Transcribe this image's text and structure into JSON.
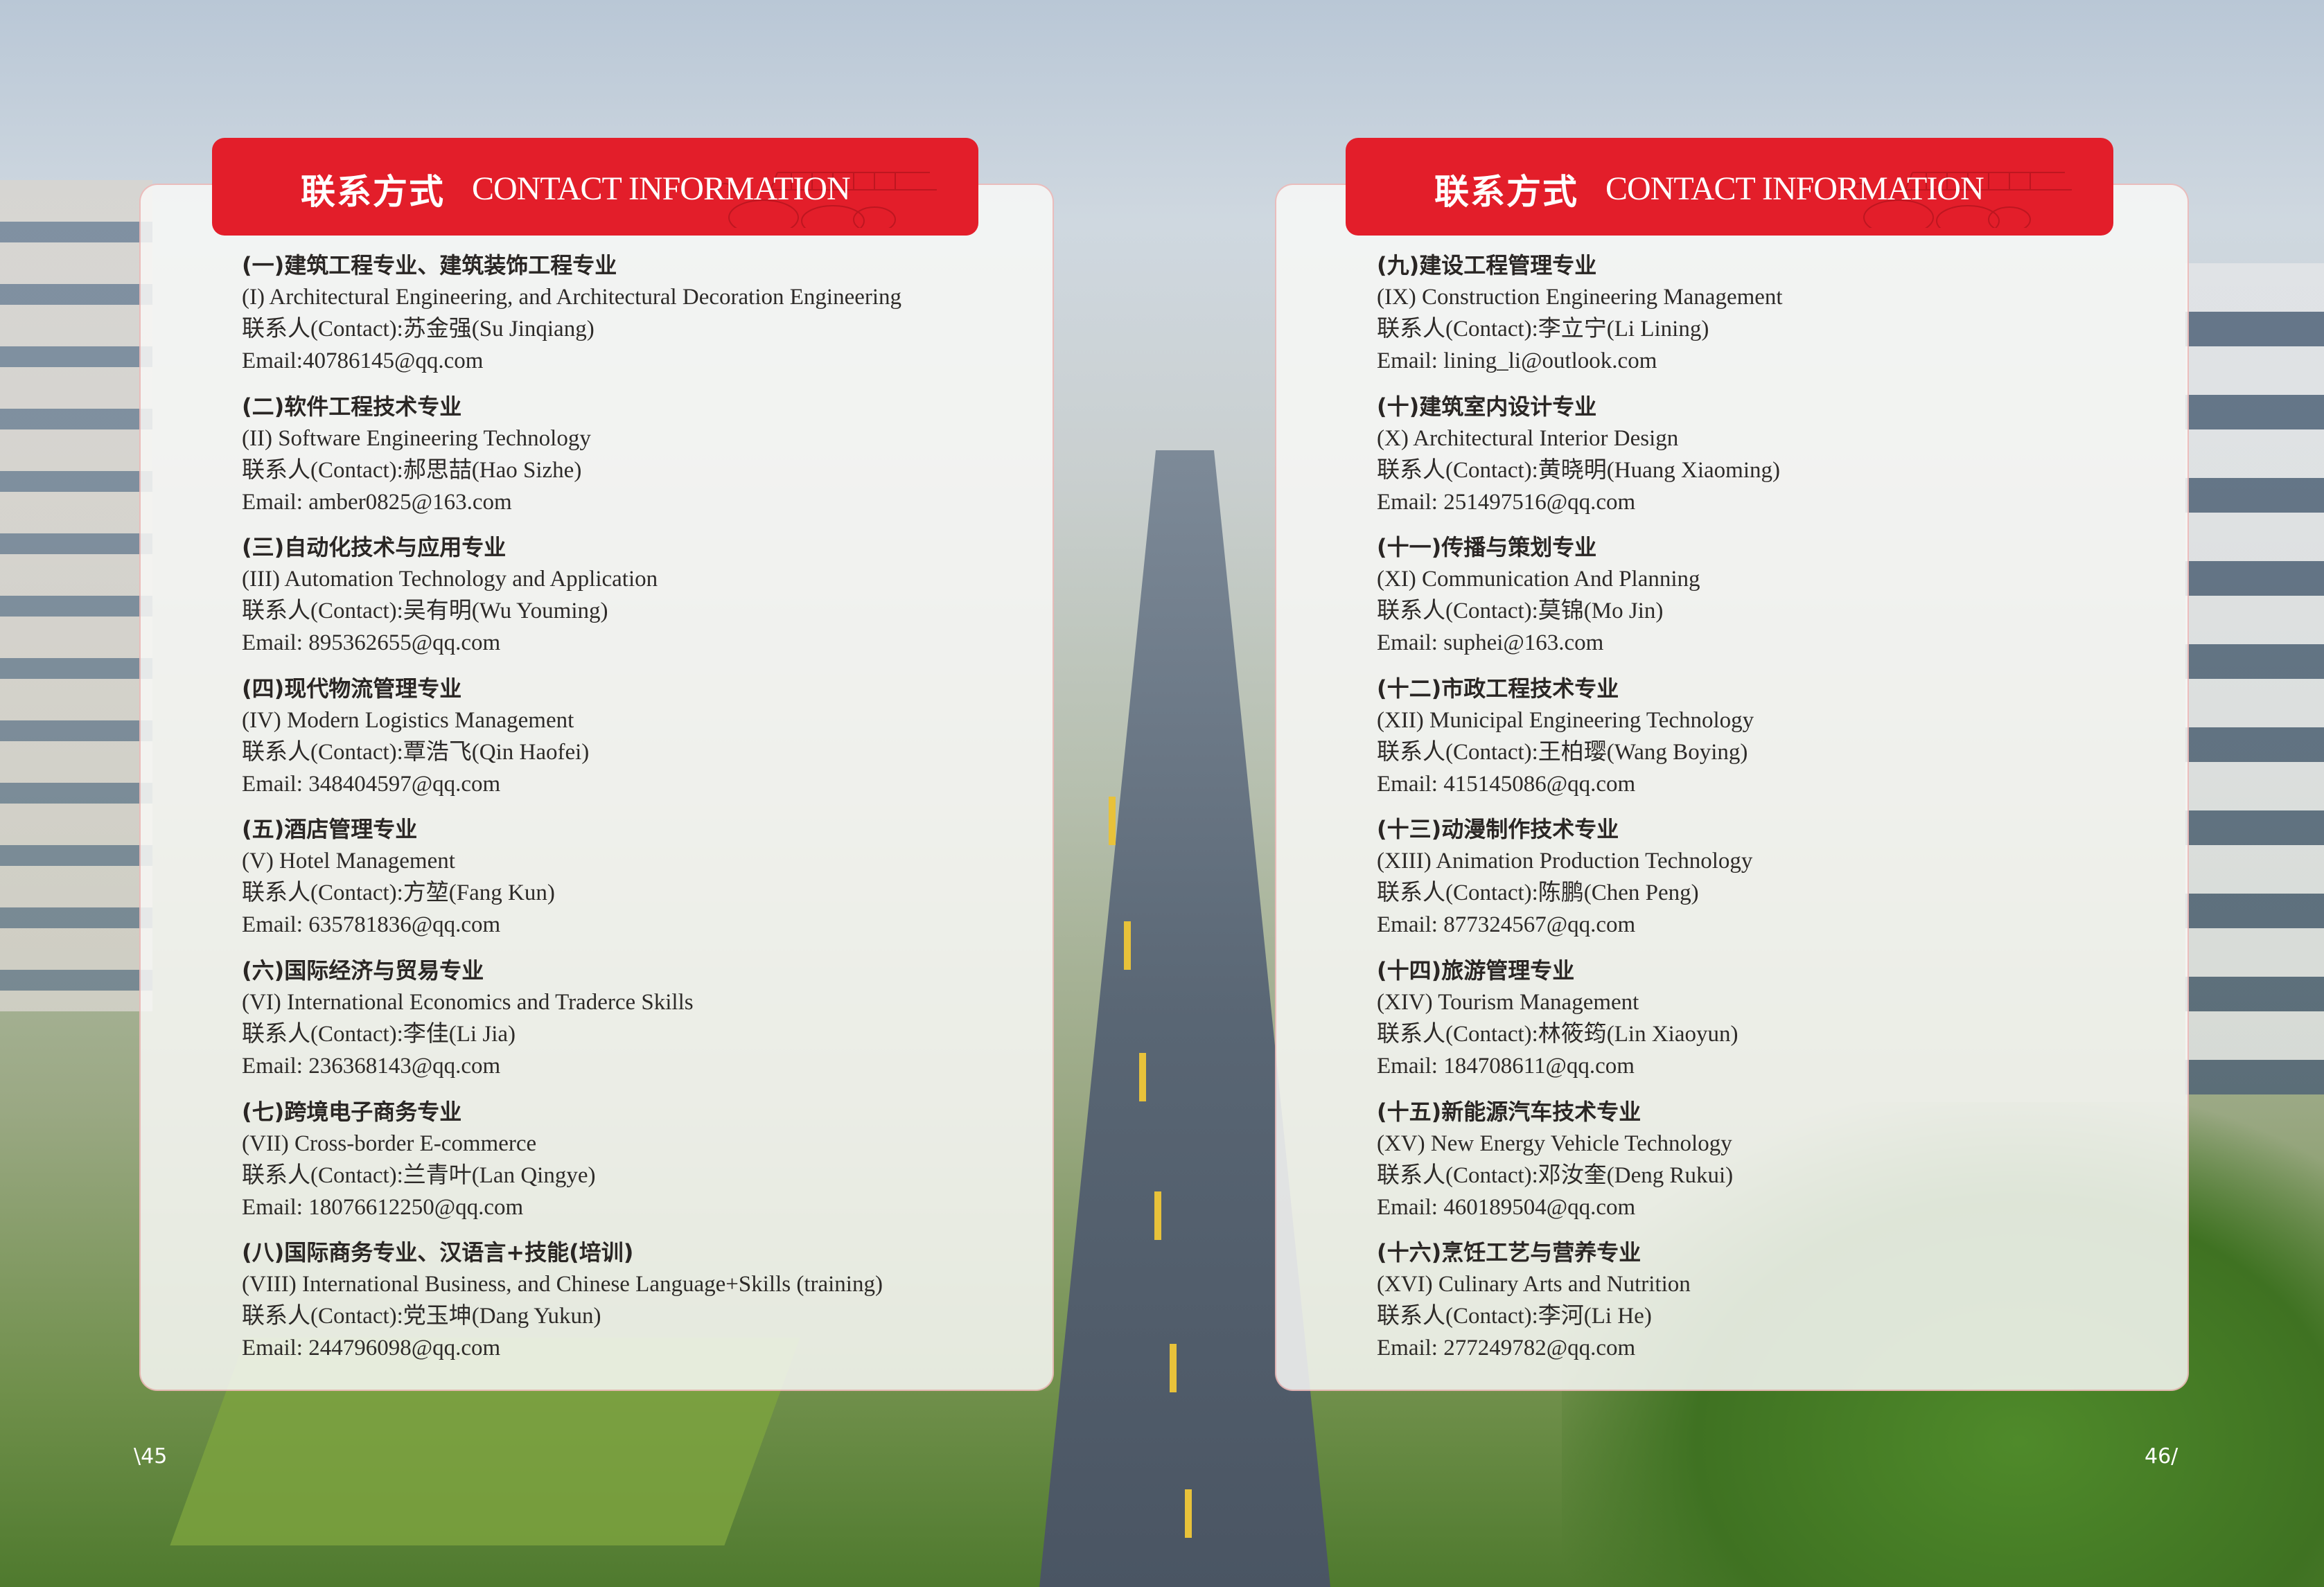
{
  "header": {
    "title_zh": "联系方式",
    "title_en": "CONTACT INFORMATION"
  },
  "colors": {
    "header_red": "#e31e2a",
    "text": "#2d2a28"
  },
  "pages": {
    "left_number": "\\45",
    "right_number": "46/"
  },
  "left_sections": [
    {
      "heading": "(一)建筑工程专业、建筑装饰工程专业",
      "english": "(I) Architectural Engineering, and Architectural Decoration Engineering",
      "contact": "联系人(Contact):苏金强(Su Jinqiang)",
      "email": "Email:40786145@qq.com"
    },
    {
      "heading": "(二)软件工程技术专业",
      "english": "(II) Software Engineering Technology",
      "contact": "联系人(Contact):郝思喆(Hao Sizhe)",
      "email": "Email: amber0825@163.com"
    },
    {
      "heading": "(三)自动化技术与应用专业",
      "english": "(III) Automation Technology and Application",
      "contact": "联系人(Contact):吴有明(Wu Youming)",
      "email": "Email: 895362655@qq.com"
    },
    {
      "heading": "(四)现代物流管理专业",
      "english": "(IV) Modern Logistics Management",
      "contact": "联系人(Contact):覃浩飞(Qin Haofei)",
      "email": "Email: 348404597@qq.com"
    },
    {
      "heading": "(五)酒店管理专业",
      "english": "(V) Hotel Management",
      "contact": "联系人(Contact):方堃(Fang Kun)",
      "email": "Email: 635781836@qq.com"
    },
    {
      "heading": "(六)国际经济与贸易专业",
      "english": "(VI) International Economics and Traderce Skills",
      "contact": "联系人(Contact):李佳(Li Jia)",
      "email": "Email: 236368143@qq.com"
    },
    {
      "heading": "(七)跨境电子商务专业",
      "english": "(VII) Cross-border E-commerce",
      "contact": "联系人(Contact):兰青叶(Lan Qingye)",
      "email": "Email: 18076612250@qq.com"
    },
    {
      "heading": "(八)国际商务专业、汉语言+技能(培训)",
      "english": "(VIII) International Business, and Chinese Language+Skills (training)",
      "contact": "联系人(Contact):党玉坤(Dang Yukun)",
      "email": "Email: 244796098@qq.com"
    }
  ],
  "right_sections": [
    {
      "heading": "(九)建设工程管理专业",
      "english": "(IX) Construction Engineering Management",
      "contact": "联系人(Contact):李立宁(Li Lining)",
      "email": "Email: lining_li@outlook.com"
    },
    {
      "heading": "(十)建筑室内设计专业",
      "english": "(X) Architectural Interior Design",
      "contact": "联系人(Contact):黄晓明(Huang Xiaoming)",
      "email": "Email: 251497516@qq.com"
    },
    {
      "heading": "(十一)传播与策划专业",
      "english": "(XI) Communication And Planning",
      "contact": "联系人(Contact):莫锦(Mo Jin)",
      "email": "Email: suphei@163.com"
    },
    {
      "heading": "(十二)市政工程技术专业",
      "english": "(XII) Municipal Engineering Technology",
      "contact": "联系人(Contact):王柏璎(Wang Boying)",
      "email": "Email: 415145086@qq.com"
    },
    {
      "heading": "(十三)动漫制作技术专业",
      "english": "(XIII) Animation Production Technology",
      "contact": "联系人(Contact):陈鹏(Chen Peng)",
      "email": "Email: 877324567@qq.com"
    },
    {
      "heading": "(十四)旅游管理专业",
      "english": "(XIV) Tourism Management",
      "contact": "联系人(Contact):林筱筠(Lin Xiaoyun)",
      "email": "Email: 184708611@qq.com"
    },
    {
      "heading": "(十五)新能源汽车技术专业",
      "english": "(XV) New Energy Vehicle Technology",
      "contact": "联系人(Contact):邓汝奎(Deng Rukui)",
      "email": "Email: 460189504@qq.com"
    },
    {
      "heading": "(十六)烹饪工艺与营养专业",
      "english": "(XVI) Culinary Arts and Nutrition",
      "contact": "联系人(Contact):李河(Li He)",
      "email": "Email: 277249782@qq.com"
    }
  ]
}
